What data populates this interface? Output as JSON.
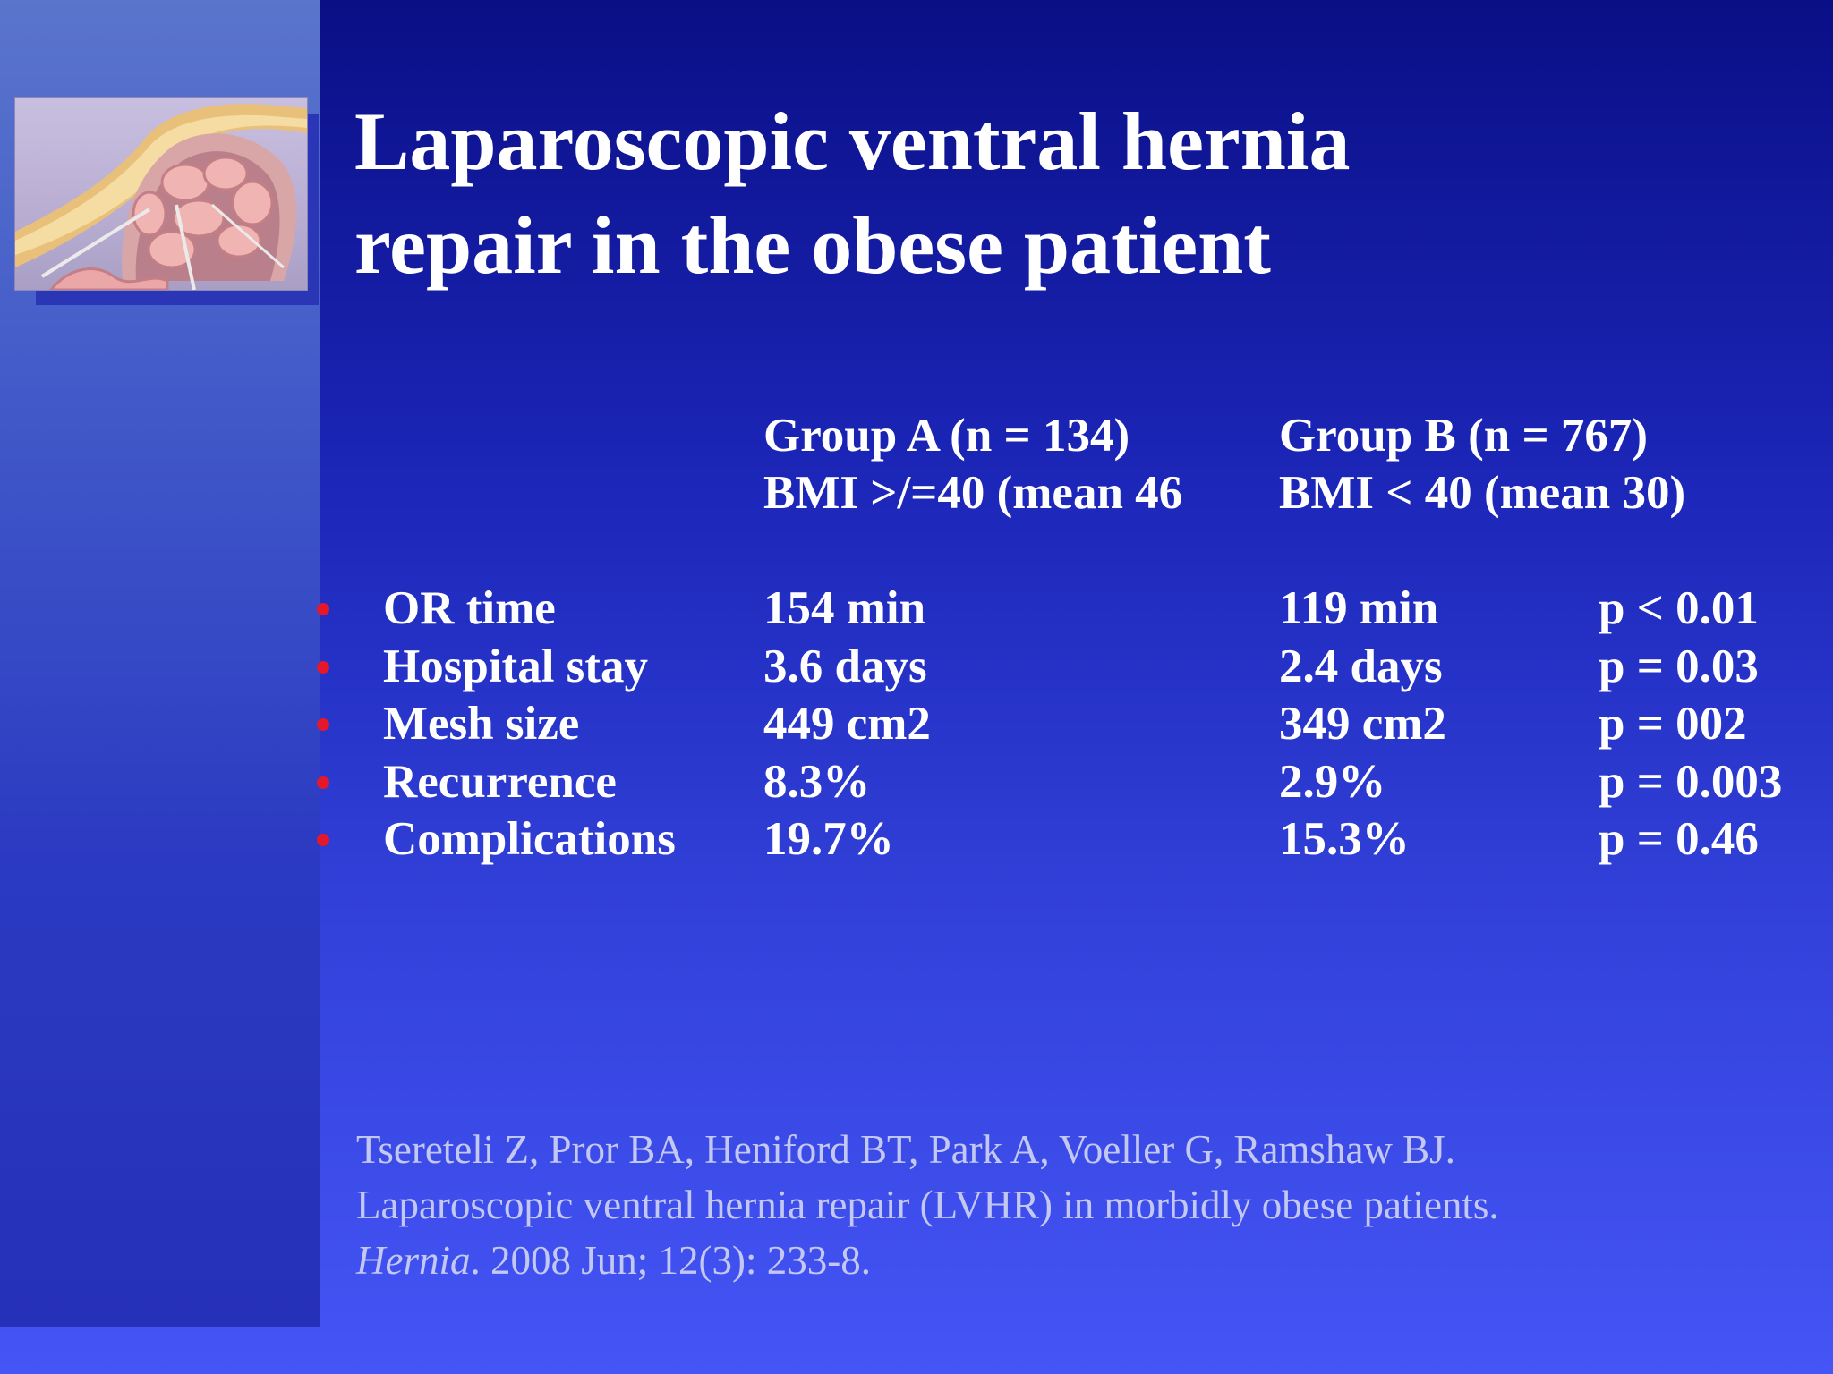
{
  "slide": {
    "title_line1": "Laparoscopic ventral hernia",
    "title_line2": "repair in the obese patient",
    "image_icon": "hernia-illustration-icon"
  },
  "table": {
    "group_a": {
      "header": "Group A (n = 134)",
      "subheader": "BMI >/=40 (mean 46"
    },
    "group_b": {
      "header": "Group B (n = 767)",
      "subheader": "BMI < 40 (mean 30)"
    },
    "rows": [
      {
        "label": "OR time",
        "a": "154 min",
        "b": "119 min",
        "p": "p < 0.01"
      },
      {
        "label": "Hospital stay",
        "a": "3.6 days",
        "b": "2.4 days",
        "p": "p = 0.03"
      },
      {
        "label": "Mesh size",
        "a": "449 cm2",
        "b": "349 cm2",
        "p": "p = 002"
      },
      {
        "label": "Recurrence",
        "a": "8.3%",
        "b": "2.9%",
        "p": "p = 0.003"
      },
      {
        "label": "Complications",
        "a": "19.7%",
        "b": "15.3%",
        "p": "p = 0.46"
      }
    ],
    "bullet_color": "#e4182a"
  },
  "citation": {
    "line1": "Tsereteli Z, Pror BA, Heniford BT, Park A, Voeller G, Ramshaw BJ.",
    "line2": "Laparoscopic ventral hernia repair (LVHR) in morbidly obese patients.",
    "journal": "Hernia",
    "line3_rest": ". 2008 Jun; 12(3): 233-8."
  }
}
